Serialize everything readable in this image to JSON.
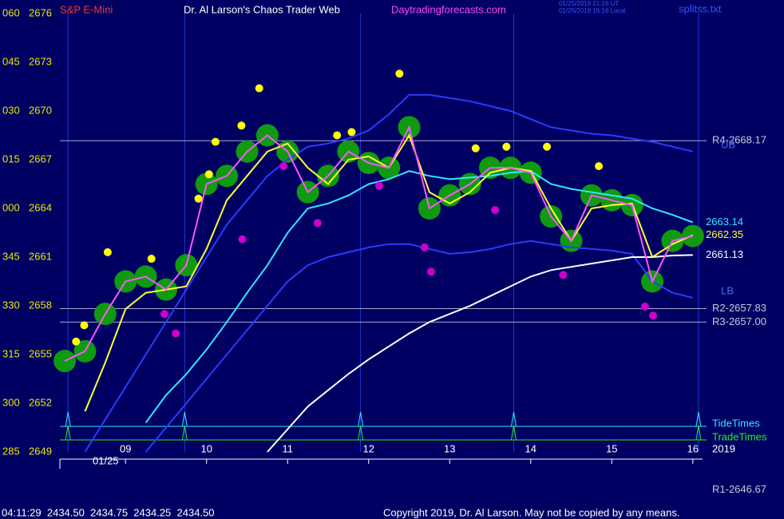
{
  "chart_data": {
    "type": "line",
    "symbol": "S&P E-Mini",
    "title": "Dr. Al Larson's Chaos Trader Web",
    "site": "Daytradingforecasts.com",
    "timestamps": [
      "01/25/2019 21:16 UT",
      "01/25/2019 16:16 Local"
    ],
    "file": "splitss.txt",
    "date_label": "01/25",
    "year": "2019",
    "quote": "04:11:29  2434.50  2434.75  2434.25  2434.50",
    "copyright": "Copyright 2019, Dr. Al Larson. May not be copied by any means.",
    "x": [
      8.25,
      8.5,
      8.75,
      9.0,
      9.25,
      9.5,
      9.75,
      10.0,
      10.25,
      10.5,
      10.75,
      11.0,
      11.25,
      11.5,
      11.75,
      12.0,
      12.25,
      12.5,
      12.75,
      13.0,
      13.25,
      13.5,
      13.75,
      14.0,
      14.25,
      14.5,
      14.75,
      15.0,
      15.25,
      15.5,
      15.75,
      16.0
    ],
    "xlim": [
      8.19,
      16.12
    ],
    "xticks": [
      {
        "value": 9,
        "label": "09"
      },
      10,
      11,
      12,
      13,
      14,
      15,
      16
    ],
    "ylim": [
      2649,
      2676
    ],
    "yticks": [
      2649,
      2652,
      2655,
      2658,
      2661,
      2664,
      2667,
      2670,
      2673,
      2676
    ],
    "y2lim": [
      285,
      420
    ],
    "y2ticks": [
      285,
      300,
      315,
      330,
      345,
      {
        "value": 360,
        "label": "000"
      },
      {
        "value": 375,
        "label": "015"
      },
      {
        "value": 390,
        "label": "030"
      },
      {
        "value": 405,
        "label": "045"
      },
      {
        "value": 420,
        "label": "060"
      }
    ],
    "series": [
      {
        "color": "#2a3cff",
        "label": "UB",
        "values": [
          null,
          2649,
          2651,
          2653,
          2655,
          2657,
          2659,
          2661,
          2663,
          2664.5,
          2666,
          2667,
          2667.8,
          2668,
          2668.3,
          2668.8,
          2669.8,
          2671,
          2671,
          2670.8,
          2670.6,
          2670.3,
          2670,
          2669.5,
          2669,
          2668.8,
          2668.6,
          2668.5,
          2668.3,
          2668.1,
          2667.8,
          2667.5
        ]
      },
      {
        "color": "#2a3cff",
        "label": "LB",
        "values": [
          null,
          null,
          null,
          null,
          2649,
          2650.5,
          2652,
          2653.5,
          2655,
          2656.5,
          2658,
          2659.5,
          2660.5,
          2661,
          2661.3,
          2661.6,
          2661.8,
          2661.8,
          2661.5,
          2661.2,
          2661.3,
          2661.5,
          2661.8,
          2662,
          2661.8,
          2661.6,
          2661.5,
          2661.4,
          2661.2,
          2659.5,
          2658.8,
          2658.5
        ]
      },
      {
        "color": "#ffffff",
        "end_label": "2661.13",
        "values": [
          null,
          null,
          null,
          null,
          null,
          null,
          null,
          null,
          null,
          null,
          2649,
          2650.4,
          2651.8,
          2652.8,
          2653.8,
          2654.7,
          2655.5,
          2656.3,
          2657,
          2657.5,
          2658,
          2658.6,
          2659.2,
          2659.8,
          2660.2,
          2660.4,
          2660.6,
          2660.8,
          2661,
          2661,
          2661.1,
          2661.13
        ]
      },
      {
        "color": "#33e6ff",
        "end_label": "2663.14",
        "values": [
          null,
          null,
          null,
          null,
          2650.8,
          2652.5,
          2653.8,
          2655.3,
          2657,
          2658.8,
          2660.5,
          2662.5,
          2664,
          2664.3,
          2664.8,
          2665.5,
          2665.8,
          2666.3,
          2666,
          2665.8,
          2665.9,
          2666,
          2666.2,
          2666.3,
          2665.5,
          2665.2,
          2665,
          2664.8,
          2664.6,
          2664,
          2663.6,
          2663.14
        ]
      },
      {
        "color": "#ffff33",
        "end_label": "2662.35",
        "values": [
          null,
          2651.5,
          2654.5,
          2657.8,
          2658.8,
          2659,
          2659.2,
          2661.5,
          2664.5,
          2666,
          2667.5,
          2668,
          2666.5,
          2665.5,
          2667,
          2667.2,
          2666.5,
          2668.5,
          2665,
          2664.3,
          2665,
          2666.2,
          2666.5,
          2666.3,
          2664,
          2662,
          2664,
          2664.2,
          2664.3,
          2661,
          2661.8,
          2662.35
        ]
      },
      {
        "color": "#ff55ff",
        "values": [
          2654.6,
          2655.2,
          2657.5,
          2659.5,
          2659.8,
          2659,
          2660.5,
          2665.5,
          2666,
          2667.5,
          2668.5,
          2667.5,
          2665,
          2666,
          2667.5,
          2666.8,
          2666.5,
          2669,
          2664,
          2664.8,
          2665.5,
          2666.5,
          2666.5,
          2666.2,
          2663.5,
          2662,
          2664.8,
          2664.5,
          2664.2,
          2659.5,
          2662,
          2662.3
        ]
      }
    ],
    "levels": [
      {
        "label": "R4-2668.17",
        "value": 2668.17
      },
      {
        "label": "R2-2657.83",
        "value": 2657.83
      },
      {
        "label": "R3-2657.00",
        "value": 2657.0
      },
      {
        "label": "R1-2646.67",
        "value": 2646.67
      }
    ],
    "tide": {
      "label": "TideTimes",
      "color": "#33e6ff",
      "times": [
        8.29,
        9.73,
        11.9,
        13.79,
        16.07
      ]
    },
    "trade": {
      "label": "TradeTimes",
      "color": "#22ee22",
      "times": [
        8.29,
        9.73,
        11.9,
        13.79,
        16.07
      ]
    },
    "highs": {
      "color": "#ffff00",
      "x": [
        8.39,
        8.49,
        8.78,
        9.32,
        9.9,
        10.03,
        10.11,
        10.43,
        10.65,
        11.61,
        11.79,
        12.38,
        13.32,
        13.7,
        14.2,
        14.84
      ],
      "values": [
        2655.8,
        2656.8,
        2661.3,
        2660.9,
        2664.6,
        2666.1,
        2668.1,
        2669.1,
        2671.4,
        2668.5,
        2668.7,
        2672.3,
        2667.7,
        2667.8,
        2667.8,
        2666.6
      ]
    },
    "lows": {
      "color": "#cc00cc",
      "x": [
        9.48,
        9.62,
        10.44,
        10.95,
        11.37,
        12.13,
        12.69,
        12.77,
        13.56,
        14.4,
        15.41,
        15.51
      ],
      "values": [
        2657.5,
        2656.3,
        2662.1,
        2666.6,
        2663.1,
        2665.4,
        2661.6,
        2660.1,
        2663.9,
        2659.9,
        2657.95,
        2657.4
      ]
    }
  }
}
